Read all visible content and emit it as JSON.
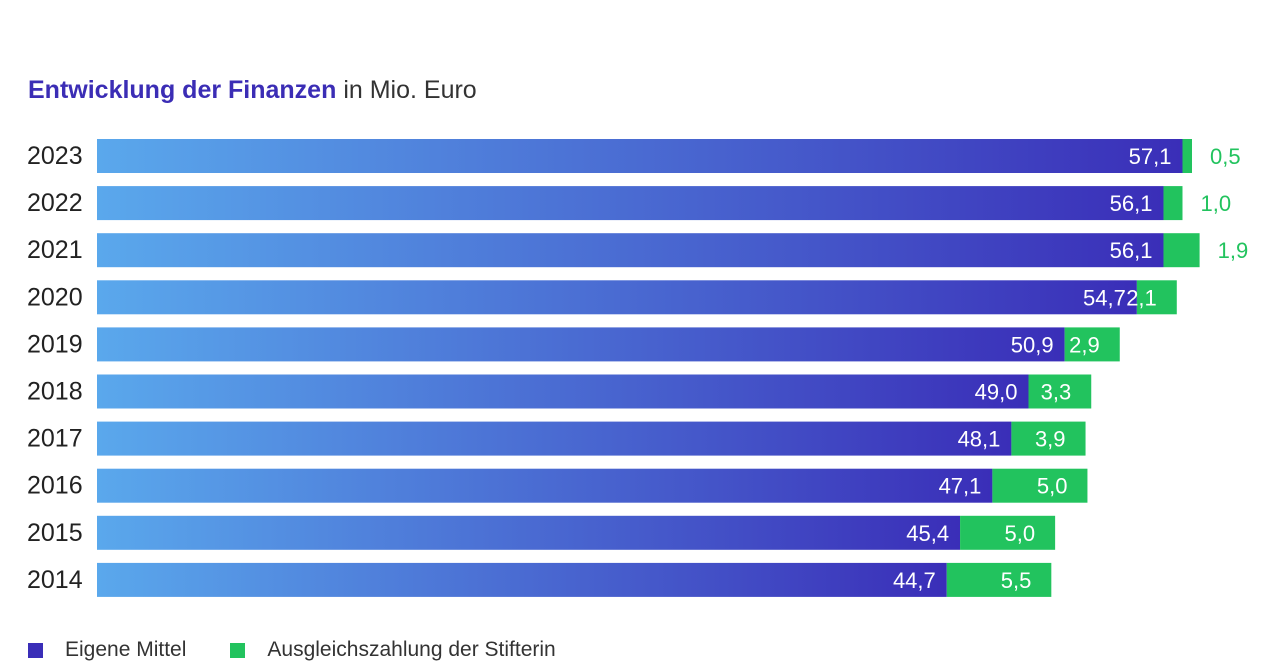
{
  "chart_data": {
    "type": "bar",
    "orientation": "horizontal",
    "stacked": true,
    "title": "Entwicklung der Finanzen",
    "subtitle": "in Mio. Euro",
    "categories": [
      "2023",
      "2022",
      "2021",
      "2020",
      "2019",
      "2018",
      "2017",
      "2016",
      "2015",
      "2014"
    ],
    "series": [
      {
        "name": "Eigene Mittel",
        "values": [
          57.1,
          56.1,
          56.1,
          54.7,
          50.9,
          49.0,
          48.1,
          47.1,
          45.4,
          44.7
        ],
        "labels": [
          "57,1",
          "56,1",
          "56,1",
          "54,7",
          "50,9",
          "49,0",
          "48,1",
          "47,1",
          "45,4",
          "44,7"
        ],
        "color": "#3a2eb8",
        "gradient_start": "#5aa8ec"
      },
      {
        "name": "Ausgleichszahlung der Stifterin",
        "values": [
          0.5,
          1.0,
          1.9,
          2.1,
          2.9,
          3.3,
          3.9,
          5.0,
          5.0,
          5.5
        ],
        "labels": [
          "0,5",
          "1,0",
          "1,9",
          "2,1",
          "2,9",
          "3,3",
          "3,9",
          "5,0",
          "5,0",
          "5,5"
        ],
        "color": "#22c35e",
        "label_outside": [
          true,
          true,
          true,
          false,
          false,
          false,
          false,
          false,
          false,
          false
        ]
      }
    ],
    "xlim": [
      0,
      57.6
    ],
    "grid": false,
    "legend_position": "bottom-left"
  }
}
